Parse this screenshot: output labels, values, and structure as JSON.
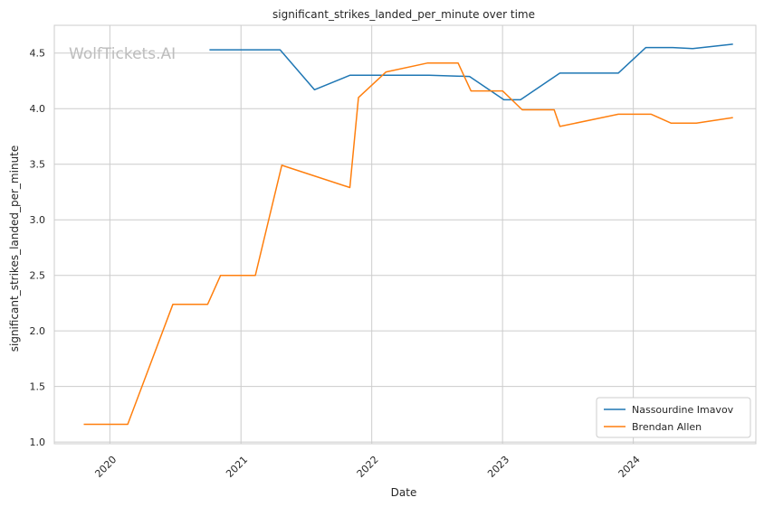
{
  "watermark": "WolfTickets.AI",
  "chart_data": {
    "type": "line",
    "title": "significant_strikes_landed_per_minute over time",
    "xlabel": "Date",
    "ylabel": "significant_strikes_landed_per_minute",
    "xlim": [
      "2019-07-30",
      "2024-12-08"
    ],
    "ylim": [
      0.985,
      4.75
    ],
    "x_ticks": [
      {
        "date": "2020-01-01",
        "label": "2020"
      },
      {
        "date": "2021-01-01",
        "label": "2021"
      },
      {
        "date": "2022-01-01",
        "label": "2022"
      },
      {
        "date": "2023-01-01",
        "label": "2023"
      },
      {
        "date": "2024-01-01",
        "label": "2024"
      }
    ],
    "y_ticks": [
      1.0,
      1.5,
      2.0,
      2.5,
      3.0,
      3.5,
      4.0,
      4.5
    ],
    "y_tick_labels": [
      "1.0",
      "1.5",
      "2.0",
      "2.5",
      "3.0",
      "3.5",
      "4.0",
      "4.5"
    ],
    "grid": true,
    "legend_position": "bottom-right",
    "series": [
      {
        "name": "Nassourdine Imavov",
        "color": "#1f77b4",
        "points": [
          {
            "x": "2020-10-05",
            "y": 4.53
          },
          {
            "x": "2021-04-20",
            "y": 4.53
          },
          {
            "x": "2021-07-25",
            "y": 4.17
          },
          {
            "x": "2021-11-01",
            "y": 4.3
          },
          {
            "x": "2022-06-10",
            "y": 4.3
          },
          {
            "x": "2022-10-01",
            "y": 4.29
          },
          {
            "x": "2023-01-05",
            "y": 4.08
          },
          {
            "x": "2023-02-20",
            "y": 4.08
          },
          {
            "x": "2023-06-10",
            "y": 4.32
          },
          {
            "x": "2023-11-20",
            "y": 4.32
          },
          {
            "x": "2024-02-05",
            "y": 4.55
          },
          {
            "x": "2024-04-20",
            "y": 4.55
          },
          {
            "x": "2024-06-15",
            "y": 4.54
          },
          {
            "x": "2024-10-05",
            "y": 4.58
          }
        ]
      },
      {
        "name": "Brendan Allen",
        "color": "#ff7f0e",
        "points": [
          {
            "x": "2019-10-20",
            "y": 1.16
          },
          {
            "x": "2020-02-20",
            "y": 1.16
          },
          {
            "x": "2020-06-25",
            "y": 2.24
          },
          {
            "x": "2020-09-30",
            "y": 2.24
          },
          {
            "x": "2020-11-05",
            "y": 2.5
          },
          {
            "x": "2021-02-10",
            "y": 2.5
          },
          {
            "x": "2021-04-25",
            "y": 3.49
          },
          {
            "x": "2021-11-01",
            "y": 3.29
          },
          {
            "x": "2021-11-25",
            "y": 4.1
          },
          {
            "x": "2022-02-10",
            "y": 4.33
          },
          {
            "x": "2022-06-05",
            "y": 4.41
          },
          {
            "x": "2022-08-30",
            "y": 4.41
          },
          {
            "x": "2022-10-05",
            "y": 4.16
          },
          {
            "x": "2023-01-01",
            "y": 4.16
          },
          {
            "x": "2023-02-25",
            "y": 3.99
          },
          {
            "x": "2023-05-25",
            "y": 3.99
          },
          {
            "x": "2023-06-10",
            "y": 3.84
          },
          {
            "x": "2023-11-20",
            "y": 3.95
          },
          {
            "x": "2024-02-20",
            "y": 3.95
          },
          {
            "x": "2024-04-15",
            "y": 3.87
          },
          {
            "x": "2024-06-25",
            "y": 3.87
          },
          {
            "x": "2024-10-05",
            "y": 3.92
          }
        ]
      }
    ]
  }
}
